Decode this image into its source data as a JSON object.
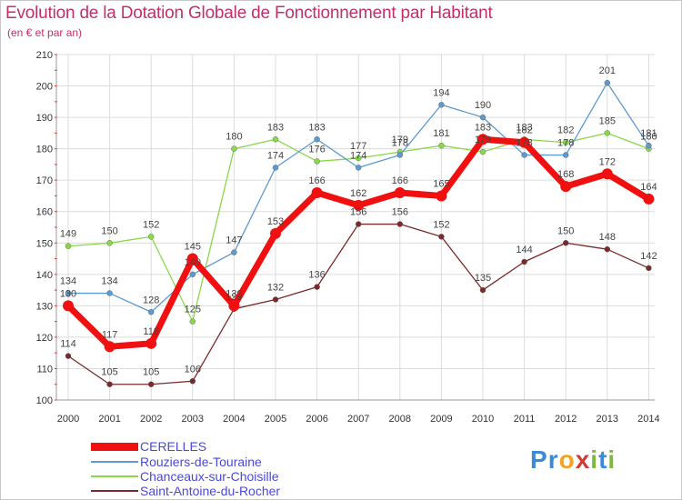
{
  "header": {
    "title": "Evolution de la Dotation Globale de Fonctionnement par Habitant",
    "subtitle": "(en € et par an)"
  },
  "logo": {
    "text": "Proxiti",
    "letters": [
      "P",
      "r",
      "o",
      "x",
      "i",
      "t",
      "i"
    ]
  },
  "chart_data": {
    "type": "line",
    "title": "Evolution de la Dotation Globale de Fonctionnement par Habitant",
    "subtitle": "(en € et par an)",
    "xlabel": "",
    "ylabel": "",
    "ylim": [
      100,
      210
    ],
    "yticks": [
      100,
      110,
      120,
      130,
      140,
      150,
      160,
      170,
      180,
      190,
      200,
      210
    ],
    "x": [
      "2000",
      "2001",
      "2002",
      "2003",
      "2004",
      "2005",
      "2006",
      "2007",
      "2008",
      "2009",
      "2010",
      "2011",
      "2012",
      "2013",
      "2014"
    ],
    "grid": true,
    "legend_position": "bottom-left",
    "series": [
      {
        "name": "Chanceaux-sur-Choisille",
        "color": "#88d84a",
        "values": [
          149,
          150,
          152,
          125,
          180,
          183,
          176,
          177,
          179,
          181,
          179,
          183,
          182,
          185,
          180
        ],
        "value_labels": [
          "149",
          "150",
          "152",
          "125",
          "180",
          "183",
          "176",
          "177",
          "179",
          "181",
          "179",
          "183",
          "182",
          "185",
          "180"
        ]
      },
      {
        "name": "Rouziers-de-Touraine",
        "color": "#5c9ad0",
        "values": [
          134,
          134,
          128,
          140,
          147,
          174,
          183,
          174,
          178,
          194,
          190,
          178,
          178,
          201,
          181
        ],
        "value_labels": [
          "134",
          "134",
          "128",
          "140",
          "147",
          "174",
          "183",
          "174",
          "178",
          "194",
          "190",
          "178",
          "178",
          "201",
          "181"
        ]
      },
      {
        "name": "Saint-Antoine-du-Rocher",
        "color": "#7a2a2a",
        "values": [
          114,
          105,
          105,
          106,
          129,
          132,
          136,
          156,
          156,
          152,
          135,
          144,
          150,
          148,
          142
        ],
        "value_labels": [
          "114",
          "105",
          "105",
          "106",
          "129",
          "132",
          "136",
          "156",
          "156",
          "152",
          "135",
          "144",
          "150",
          "148",
          "142"
        ]
      },
      {
        "name": "CERELLES",
        "color": "#f01010",
        "values": [
          130,
          117,
          118,
          145,
          130,
          153,
          166,
          162,
          166,
          165,
          183,
          182,
          168,
          172,
          164
        ],
        "value_labels": [
          "130",
          "117",
          "118",
          "145",
          "130",
          "153",
          "166",
          "162",
          "166",
          "165",
          "183",
          "182",
          "168",
          "172",
          "164"
        ]
      }
    ],
    "legend": [
      {
        "name": "CERELLES",
        "color": "#f01010"
      },
      {
        "name": "Rouziers-de-Touraine",
        "color": "#5c9ad0"
      },
      {
        "name": "Chanceaux-sur-Choisille",
        "color": "#88d84a"
      },
      {
        "name": "Saint-Antoine-du-Rocher",
        "color": "#7a2a2a"
      }
    ]
  }
}
